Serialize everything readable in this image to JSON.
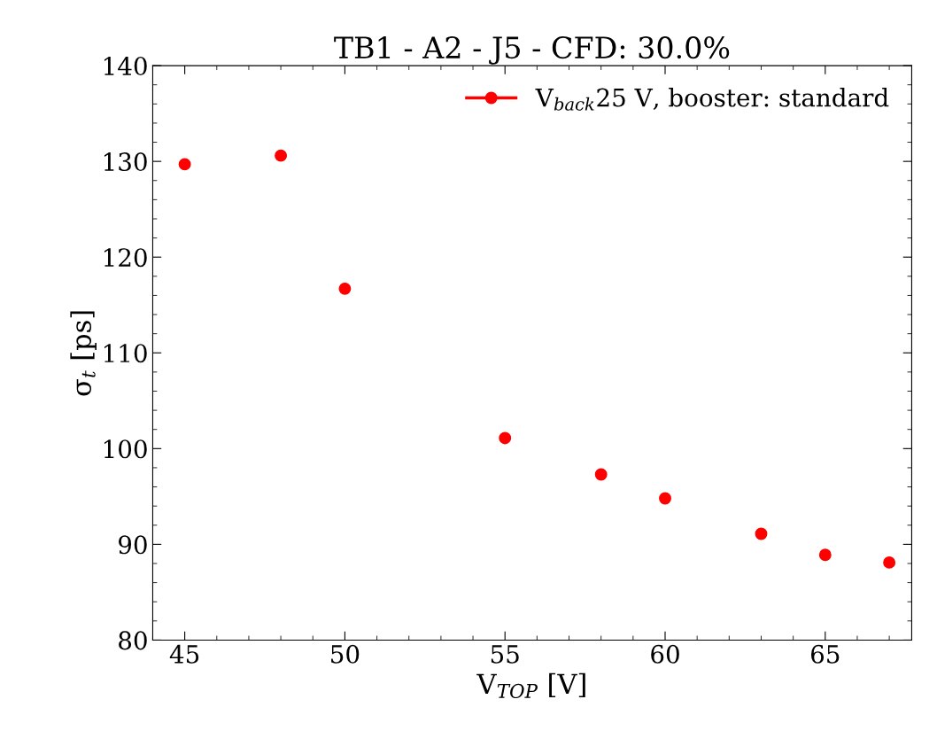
{
  "chart_data": {
    "type": "scatter",
    "title": "TB1 - A2 - J5 - CFD: 30.0%",
    "xlabel": "V$_{TOP}$ [V]",
    "ylabel": "σ$_{t}$ [ps]",
    "x": [
      45,
      48,
      50,
      55,
      58,
      60,
      63,
      65,
      67
    ],
    "series": [
      {
        "name": "V$_{back}$25 V, booster: standard",
        "color": "#ff0000",
        "values": [
          129.7,
          130.6,
          116.7,
          101.1,
          97.3,
          94.8,
          91.1,
          88.9,
          88.1
        ]
      }
    ],
    "xlim": [
      44,
      67.7
    ],
    "xticks": [
      45,
      50,
      55,
      60,
      65
    ],
    "ylim": [
      80,
      140
    ],
    "yticks": [
      80,
      90,
      100,
      110,
      120,
      130,
      140
    ],
    "marker": "circle",
    "legend": "top right",
    "grid": false
  }
}
